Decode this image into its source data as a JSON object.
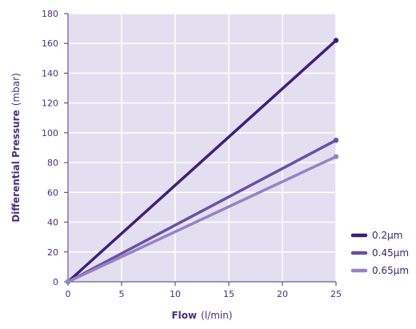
{
  "colors": {
    "plot_bg": "#e3dff0",
    "grid": "#ffffff",
    "axis": "#4b2e7a",
    "text": "#4b2e7a"
  },
  "chart_data": {
    "type": "line",
    "xlabel_bold": "Flow",
    "xlabel_unit": "(l/min)",
    "ylabel_bold": "Differential Pressure",
    "ylabel_unit": "(mbar)",
    "xlim": [
      0,
      25
    ],
    "ylim": [
      0,
      180
    ],
    "x_ticks": [
      "0",
      "5",
      "10",
      "15",
      "20",
      "25"
    ],
    "y_ticks": [
      "0",
      "20",
      "40",
      "60",
      "80",
      "100",
      "120",
      "140",
      "160",
      "180"
    ],
    "grid": true,
    "legend_position": "bottom-right",
    "series": [
      {
        "name": "0.2µm",
        "color": "#3f1f78",
        "x": [
          0,
          25
        ],
        "y": [
          0,
          162
        ]
      },
      {
        "name": "0.45µm",
        "color": "#6a4fa6",
        "x": [
          0,
          25
        ],
        "y": [
          0,
          95
        ]
      },
      {
        "name": "0.65µm",
        "color": "#9583c2",
        "x": [
          0,
          25
        ],
        "y": [
          0,
          84
        ]
      }
    ]
  }
}
